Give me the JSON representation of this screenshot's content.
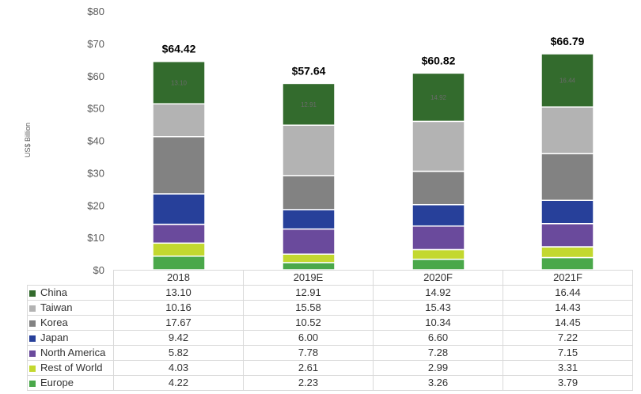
{
  "chart_data": {
    "type": "bar",
    "stacked": true,
    "ylabel": "US$ Billion",
    "ylim": [
      0,
      80
    ],
    "yticks": [
      "$0",
      "$10",
      "$20",
      "$30",
      "$40",
      "$50",
      "$60",
      "$70",
      "$80"
    ],
    "categories": [
      "2018",
      "2019E",
      "2020F",
      "2021F"
    ],
    "totals": [
      "$64.42",
      "$57.64",
      "$60.82",
      "$66.79"
    ],
    "total_values": [
      64.42,
      57.64,
      60.82,
      66.79
    ],
    "series": [
      {
        "name": "Europe",
        "color": "#4aa84a",
        "values": [
          4.22,
          2.23,
          3.26,
          3.79
        ],
        "display": [
          "4.22",
          "2.23",
          "3.26",
          "3.79"
        ]
      },
      {
        "name": "Rest of World",
        "color": "#c3d82f",
        "values": [
          4.03,
          2.61,
          2.99,
          3.31
        ],
        "display": [
          "4.03",
          "2.61",
          "2.99",
          "3.31"
        ]
      },
      {
        "name": "North America",
        "color": "#6a4a9c",
        "values": [
          5.82,
          7.78,
          7.28,
          7.15
        ],
        "display": [
          "5.82",
          "7.78",
          "7.28",
          "7.15"
        ]
      },
      {
        "name": "Japan",
        "color": "#27409a",
        "values": [
          9.42,
          6.0,
          6.6,
          7.22
        ],
        "display": [
          "9.42",
          "6.00",
          "6.60",
          "7.22"
        ]
      },
      {
        "name": "Korea",
        "color": "#828282",
        "values": [
          17.67,
          10.52,
          10.34,
          14.45
        ],
        "display": [
          "17.67",
          "10.52",
          "10.34",
          "14.45"
        ]
      },
      {
        "name": "Taiwan",
        "color": "#b3b3b3",
        "values": [
          10.16,
          15.58,
          15.43,
          14.43
        ],
        "display": [
          "10.16",
          "15.58",
          "15.43",
          "14.43"
        ]
      },
      {
        "name": "China",
        "color": "#336b2d",
        "values": [
          13.1,
          12.91,
          14.92,
          16.44
        ],
        "display": [
          "13.10",
          "12.91",
          "14.92",
          "16.44"
        ]
      }
    ],
    "bar_labels": {
      "series": "China",
      "values": [
        "13.10",
        "12.91",
        "14.92",
        "16.44"
      ]
    },
    "table_order": [
      "China",
      "Taiwan",
      "Korea",
      "Japan",
      "North America",
      "Rest of World",
      "Europe"
    ]
  }
}
